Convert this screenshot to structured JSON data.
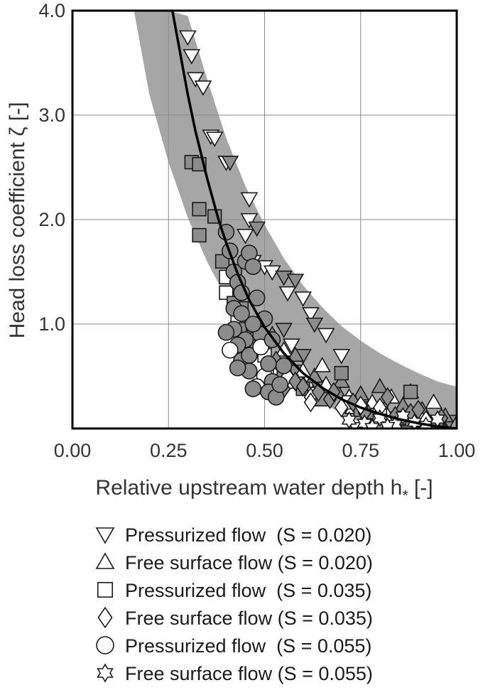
{
  "chart_data": {
    "type": "scatter",
    "title": "",
    "xlabel": "Relative upstream water depth h",
    "xlabel_subscript": "*",
    "xlabel_unit": "[-]",
    "ylabel": "Head loss coefficient ζ [-]",
    "xlim": [
      0.0,
      1.0
    ],
    "ylim": [
      0.0,
      4.0
    ],
    "x_ticks": [
      0.0,
      0.25,
      0.5,
      0.75,
      1.0
    ],
    "x_tick_labels": [
      "0.00",
      "0.25",
      "0.50",
      "0.75",
      "1.00"
    ],
    "y_ticks": [
      1.0,
      2.0,
      3.0,
      4.0
    ],
    "y_tick_labels": [
      "1.0",
      "2.0",
      "3.0",
      "4.0"
    ],
    "grid": true,
    "legend_position": "below",
    "colors": {
      "band": "#a6a6a6",
      "marker_fill": "#8c8c8c",
      "marker_open": "#ffffff",
      "curve": "#000000",
      "axis": "#000000"
    },
    "fit_curve": {
      "name": "fit",
      "x": [
        0.26,
        0.28,
        0.3,
        0.32,
        0.35,
        0.38,
        0.4,
        0.43,
        0.46,
        0.5,
        0.55,
        0.6,
        0.65,
        0.7,
        0.75,
        0.8,
        0.85,
        0.9,
        0.95,
        1.0
      ],
      "y": [
        4.0,
        3.6,
        3.2,
        2.85,
        2.4,
        2.0,
        1.78,
        1.48,
        1.23,
        0.97,
        0.72,
        0.53,
        0.39,
        0.28,
        0.2,
        0.14,
        0.09,
        0.05,
        0.02,
        0.0
      ]
    },
    "band": {
      "x": [
        0.16,
        0.2,
        0.25,
        0.3,
        0.35,
        0.4,
        0.45,
        0.5,
        0.55,
        0.6,
        0.65,
        0.7,
        0.75,
        0.8,
        0.85,
        0.9,
        0.95,
        1.0
      ],
      "upper": [
        4.0,
        4.0,
        4.0,
        3.95,
        3.35,
        2.78,
        2.32,
        1.95,
        1.63,
        1.37,
        1.16,
        0.98,
        0.84,
        0.72,
        0.62,
        0.53,
        0.45,
        0.4
      ],
      "lower": [
        4.0,
        3.2,
        2.55,
        2.02,
        1.6,
        1.25,
        0.97,
        0.74,
        0.54,
        0.38,
        0.25,
        0.14,
        0.06,
        0.01,
        0.0,
        0.0,
        0.0,
        0.0
      ]
    },
    "series": [
      {
        "name": "Pressurized flow  (S = 0.020)",
        "marker": "triangle-down",
        "x": [
          0.3,
          0.31,
          0.32,
          0.34,
          0.36,
          0.37,
          0.4,
          0.41,
          0.46,
          0.46,
          0.45,
          0.48,
          0.47,
          0.5,
          0.52,
          0.55,
          0.56,
          0.58,
          0.6,
          0.62,
          0.63,
          0.66,
          0.7,
          0.55,
          0.57,
          0.6,
          0.53,
          0.58,
          0.62,
          0.64,
          0.68,
          0.72,
          0.75,
          0.8,
          0.85,
          0.9,
          0.95,
          0.98,
          0.78,
          0.74
        ],
        "y": [
          3.75,
          3.57,
          3.35,
          3.27,
          2.8,
          2.78,
          2.55,
          2.55,
          2.2,
          2.0,
          1.85,
          1.92,
          1.6,
          1.55,
          1.5,
          1.45,
          1.3,
          1.42,
          1.25,
          1.1,
          1.0,
          0.9,
          0.7,
          0.95,
          0.8,
          0.7,
          0.6,
          0.55,
          0.45,
          0.4,
          0.35,
          0.25,
          0.2,
          0.15,
          0.1,
          0.08,
          0.05,
          0.07,
          0.02,
          0.0
        ],
        "filled": [
          false,
          false,
          false,
          false,
          false,
          false,
          false,
          true,
          false,
          false,
          false,
          true,
          false,
          false,
          false,
          true,
          false,
          true,
          false,
          false,
          true,
          false,
          false,
          true,
          false,
          true,
          false,
          true,
          false,
          true,
          false,
          true,
          false,
          true,
          false,
          true,
          false,
          true,
          false,
          false
        ]
      },
      {
        "name": "Free surface flow (S = 0.020)",
        "marker": "triangle-up",
        "x": [
          0.52,
          0.55,
          0.58,
          0.6,
          0.63,
          0.66,
          0.69,
          0.72,
          0.75,
          0.78,
          0.8,
          0.83,
          0.86,
          0.88,
          0.91,
          0.94,
          0.97,
          0.65,
          0.7,
          0.73,
          0.77,
          0.82,
          0.87,
          0.92,
          0.96
        ],
        "y": [
          0.9,
          0.75,
          0.7,
          0.55,
          0.5,
          0.42,
          0.35,
          0.3,
          0.33,
          0.25,
          0.4,
          0.3,
          0.22,
          0.35,
          0.18,
          0.25,
          0.12,
          0.6,
          0.45,
          0.2,
          0.15,
          0.12,
          0.08,
          0.06,
          0.03
        ],
        "filled": [
          true,
          false,
          true,
          false,
          true,
          false,
          true,
          false,
          true,
          false,
          true,
          false,
          true,
          false,
          true,
          false,
          true,
          false,
          true,
          false,
          true,
          false,
          true,
          false,
          true
        ]
      },
      {
        "name": "Pressurized flow  (S = 0.035)",
        "marker": "square",
        "x": [
          0.31,
          0.33,
          0.33,
          0.37,
          0.33,
          0.39,
          0.4,
          0.42,
          0.43,
          0.45,
          0.46,
          0.48,
          0.5,
          0.52,
          0.54,
          0.55,
          0.57,
          0.6,
          0.63,
          0.65,
          0.7,
          0.72,
          0.75,
          0.8,
          0.85,
          0.88,
          0.9,
          0.95,
          0.4,
          0.44,
          0.47
        ],
        "y": [
          2.55,
          2.53,
          2.1,
          2.03,
          1.85,
          1.6,
          1.3,
          1.2,
          1.05,
          0.95,
          0.85,
          0.78,
          0.7,
          0.62,
          0.55,
          0.5,
          0.45,
          0.38,
          0.33,
          0.28,
          0.53,
          0.25,
          0.18,
          0.13,
          0.1,
          0.35,
          0.08,
          0.05,
          1.45,
          1.15,
          1.0
        ],
        "filled": [
          true,
          true,
          true,
          true,
          true,
          true,
          false,
          true,
          false,
          true,
          false,
          true,
          false,
          true,
          false,
          true,
          false,
          true,
          false,
          true,
          true,
          false,
          true,
          false,
          true,
          true,
          false,
          true,
          false,
          true,
          false
        ]
      },
      {
        "name": "Free surface flow (S = 0.035)",
        "marker": "diamond",
        "x": [
          0.5,
          0.53,
          0.56,
          0.58,
          0.6,
          0.62,
          0.64,
          0.67,
          0.7,
          0.73,
          0.76,
          0.8,
          0.84,
          0.88,
          0.92,
          0.96,
          0.55,
          0.62,
          0.68,
          0.75,
          0.82,
          0.9
        ],
        "y": [
          0.8,
          0.65,
          0.5,
          0.45,
          0.4,
          0.3,
          0.35,
          0.28,
          0.2,
          0.25,
          0.15,
          0.2,
          0.12,
          0.15,
          0.08,
          0.1,
          0.38,
          0.25,
          0.35,
          0.22,
          0.3,
          0.18
        ],
        "filled": [
          true,
          true,
          false,
          true,
          true,
          false,
          true,
          true,
          false,
          true,
          true,
          false,
          true,
          true,
          false,
          true,
          true,
          false,
          true,
          false,
          true,
          true
        ]
      },
      {
        "name": "Pressurized flow  (S = 0.055)",
        "marker": "circle",
        "x": [
          0.4,
          0.41,
          0.42,
          0.43,
          0.45,
          0.46,
          0.47,
          0.44,
          0.42,
          0.48,
          0.5,
          0.49,
          0.47,
          0.45,
          0.43,
          0.41,
          0.44,
          0.46,
          0.5,
          0.52,
          0.48,
          0.51,
          0.53,
          0.55,
          0.42,
          0.44,
          0.46,
          0.49,
          0.51,
          0.54,
          0.4,
          0.43,
          0.47,
          0.52
        ],
        "y": [
          1.88,
          1.7,
          1.5,
          1.4,
          1.6,
          1.68,
          1.55,
          1.3,
          1.15,
          1.25,
          1.05,
          0.9,
          1.0,
          0.85,
          0.8,
          0.75,
          0.65,
          0.55,
          0.5,
          0.45,
          0.4,
          0.35,
          0.3,
          0.6,
          0.95,
          1.1,
          0.7,
          0.78,
          0.62,
          0.42,
          0.92,
          0.58,
          0.38,
          0.85
        ],
        "filled": [
          true,
          true,
          true,
          true,
          true,
          true,
          true,
          true,
          true,
          true,
          true,
          true,
          true,
          true,
          true,
          false,
          true,
          true,
          false,
          true,
          false,
          true,
          true,
          true,
          true,
          true,
          true,
          false,
          true,
          true,
          true,
          true,
          true,
          true
        ]
      },
      {
        "name": "Free surface flow (S = 0.055)",
        "marker": "star",
        "x": [
          0.72,
          0.76,
          0.8,
          0.84,
          0.86,
          0.89,
          0.92,
          0.95,
          0.82,
          0.78
        ],
        "y": [
          0.08,
          0.05,
          0.1,
          0.04,
          0.12,
          0.06,
          0.03,
          0.09,
          0.02,
          0.01
        ],
        "filled": [
          false,
          false,
          false,
          false,
          false,
          false,
          false,
          false,
          false,
          false
        ]
      }
    ]
  },
  "legend": {
    "items": [
      {
        "marker": "triangle-down",
        "label": "Pressurized flow  (S = 0.020)"
      },
      {
        "marker": "triangle-up",
        "label": "Free surface flow (S = 0.020)"
      },
      {
        "marker": "square",
        "label": "Pressurized flow  (S = 0.035)"
      },
      {
        "marker": "diamond",
        "label": "Free surface flow (S = 0.035)"
      },
      {
        "marker": "circle",
        "label": "Pressurized flow  (S = 0.055)"
      },
      {
        "marker": "star",
        "label": "Free surface flow (S = 0.055)"
      }
    ]
  }
}
